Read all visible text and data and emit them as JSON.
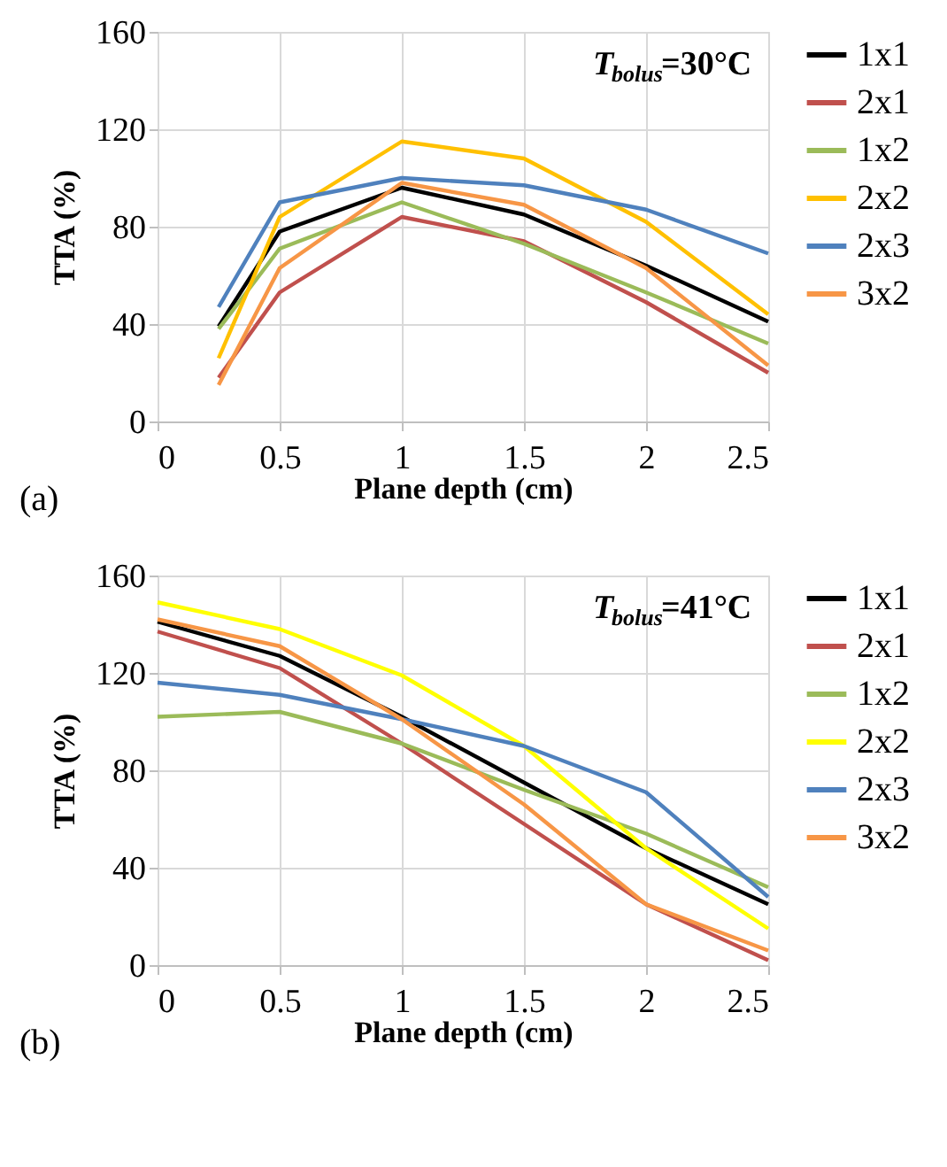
{
  "chart_data": [
    {
      "type": "line",
      "xlabel": "Plane depth (cm)",
      "ylabel": "TTA (%)",
      "annotations": [
        "T$_{bolus}$=30°C",
        "(a)"
      ],
      "x": [
        0.25,
        0.5,
        1,
        1.5,
        2,
        2.5
      ],
      "xlim": [
        0,
        2.5
      ],
      "xticks": [
        0,
        0.5,
        1,
        1.5,
        2,
        2.5
      ],
      "ylim": [
        0,
        160
      ],
      "yticks": [
        0,
        40,
        80,
        120,
        160
      ],
      "grid": true,
      "legend": "right",
      "line_style": "solid",
      "series": [
        {
          "name": "1x1",
          "color": "#000000",
          "values": [
            39,
            78,
            96,
            85,
            64,
            41
          ]
        },
        {
          "name": "2x1",
          "color": "#c0504d",
          "values": [
            18,
            53,
            84,
            74,
            49,
            20
          ]
        },
        {
          "name": "1x2",
          "color": "#9bbb59",
          "values": [
            38,
            71,
            90,
            73,
            53,
            32
          ]
        },
        {
          "name": "2x2",
          "color": "#ffc000",
          "values": [
            26,
            84,
            115,
            108,
            82,
            44
          ]
        },
        {
          "name": "2x3",
          "color": "#4f81bd",
          "values": [
            47,
            90,
            100,
            97,
            87,
            69
          ]
        },
        {
          "name": "3x2",
          "color": "#f79646",
          "values": [
            15,
            63,
            98,
            89,
            63,
            23
          ]
        }
      ]
    },
    {
      "type": "line",
      "xlabel": "Plane depth (cm)",
      "ylabel": "TTA (%)",
      "annotations": [
        "T$_{bolus}$=41°C",
        "(b)"
      ],
      "x": [
        0,
        0.5,
        1,
        1.5,
        2,
        2.5
      ],
      "xlim": [
        0,
        2.5
      ],
      "xticks": [
        0,
        0.5,
        1,
        1.5,
        2,
        2.5
      ],
      "ylim": [
        0,
        160
      ],
      "yticks": [
        0,
        40,
        80,
        120,
        160
      ],
      "grid": true,
      "legend": "right",
      "line_style": "solid",
      "series": [
        {
          "name": "1x1",
          "color": "#000000",
          "values": [
            141,
            127,
            102,
            75,
            48,
            25
          ]
        },
        {
          "name": "2x1",
          "color": "#c0504d",
          "values": [
            137,
            122,
            91,
            58,
            25,
            2
          ]
        },
        {
          "name": "1x2",
          "color": "#9bbb59",
          "values": [
            102,
            104,
            91,
            72,
            54,
            32
          ]
        },
        {
          "name": "2x2",
          "color": "#ffff00",
          "values": [
            149,
            138,
            119,
            90,
            48,
            15
          ]
        },
        {
          "name": "2x3",
          "color": "#4f81bd",
          "values": [
            116,
            111,
            101,
            90,
            71,
            28
          ]
        },
        {
          "name": "3x2",
          "color": "#f79646",
          "values": [
            142,
            131,
            101,
            66,
            25,
            6
          ]
        }
      ]
    }
  ]
}
